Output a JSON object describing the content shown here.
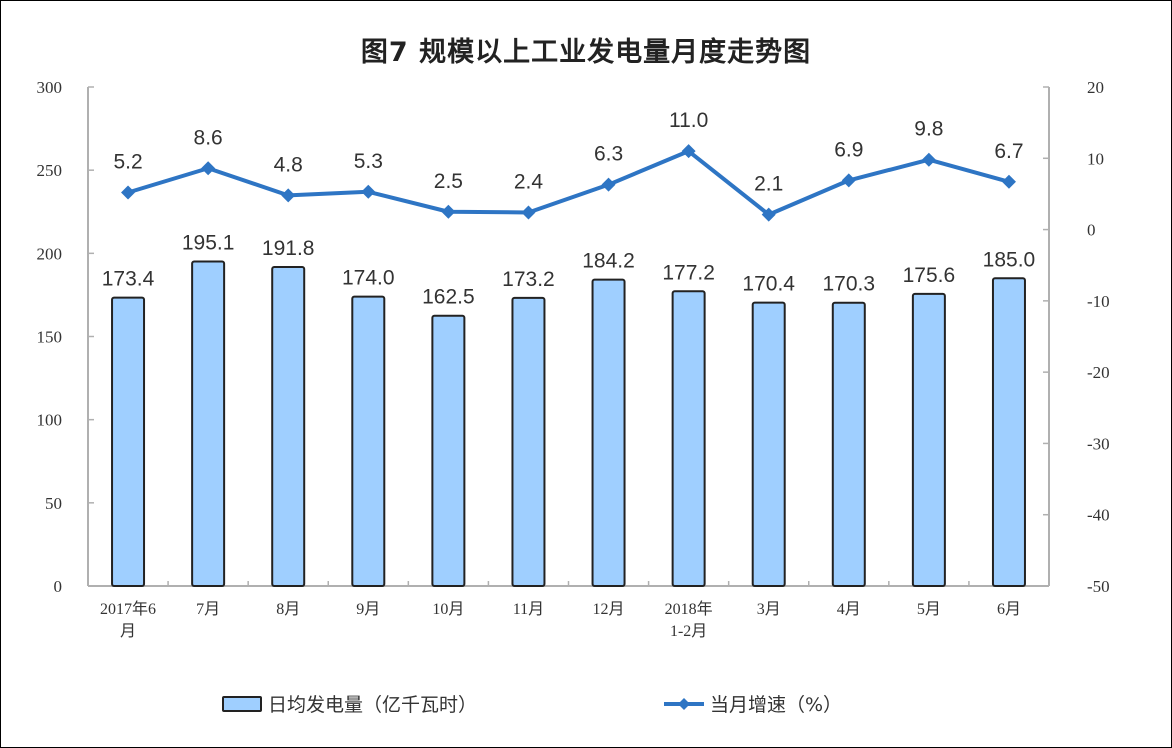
{
  "chart": {
    "title": "图7  规模以上工业发电量月度走势图"
  },
  "legend": {
    "bar_label": "日均发电量（亿千瓦时）",
    "line_label": "当月增速（%）"
  },
  "colors": {
    "bar_fill": "#9fcfff",
    "bar_stroke": "#222222",
    "line": "#2e75c4",
    "axis": "#b0b0b0",
    "text": "#333333"
  },
  "chart_data": {
    "type": "bar+line",
    "title": "图7  规模以上工业发电量月度走势图",
    "categories": [
      "2017年6月",
      "7月",
      "8月",
      "9月",
      "10月",
      "11月",
      "12月",
      "2018年1-2月",
      "3月",
      "4月",
      "5月",
      "6月"
    ],
    "category_lines": [
      [
        "2017年6",
        "月"
      ],
      [
        "7月"
      ],
      [
        "8月"
      ],
      [
        "9月"
      ],
      [
        "10月"
      ],
      [
        "11月"
      ],
      [
        "12月"
      ],
      [
        "2018年",
        "1-2月"
      ],
      [
        "3月"
      ],
      [
        "4月"
      ],
      [
        "5月"
      ],
      [
        "6月"
      ]
    ],
    "series": [
      {
        "name": "日均发电量（亿千瓦时）",
        "type": "bar",
        "axis": "left",
        "values": [
          173.4,
          195.1,
          191.8,
          174.0,
          162.5,
          173.2,
          184.2,
          177.2,
          170.4,
          170.3,
          175.6,
          185.0
        ],
        "labels": [
          "173.4",
          "195.1",
          "191.8",
          "174.0",
          "162.5",
          "173.2",
          "184.2",
          "177.2",
          "170.4",
          "170.3",
          "175.6",
          "185.0"
        ]
      },
      {
        "name": "当月增速（%）",
        "type": "line",
        "axis": "right",
        "values": [
          5.2,
          8.6,
          4.8,
          5.3,
          2.5,
          2.4,
          6.3,
          11.0,
          2.1,
          6.9,
          9.8,
          6.7
        ],
        "labels": [
          "5.2",
          "8.6",
          "4.8",
          "5.3",
          "2.5",
          "2.4",
          "6.3",
          "11.0",
          "2.1",
          "6.9",
          "9.8",
          "6.7"
        ]
      }
    ],
    "y_left": {
      "min": 0,
      "max": 300,
      "ticks": [
        0,
        50,
        100,
        150,
        200,
        250,
        300
      ],
      "label": ""
    },
    "y_right": {
      "min": -50,
      "max": 20,
      "ticks": [
        -50,
        -40,
        -30,
        -20,
        -10,
        0,
        10,
        20
      ],
      "label": ""
    },
    "xlabel": "",
    "grid": false,
    "legend_position": "bottom"
  }
}
